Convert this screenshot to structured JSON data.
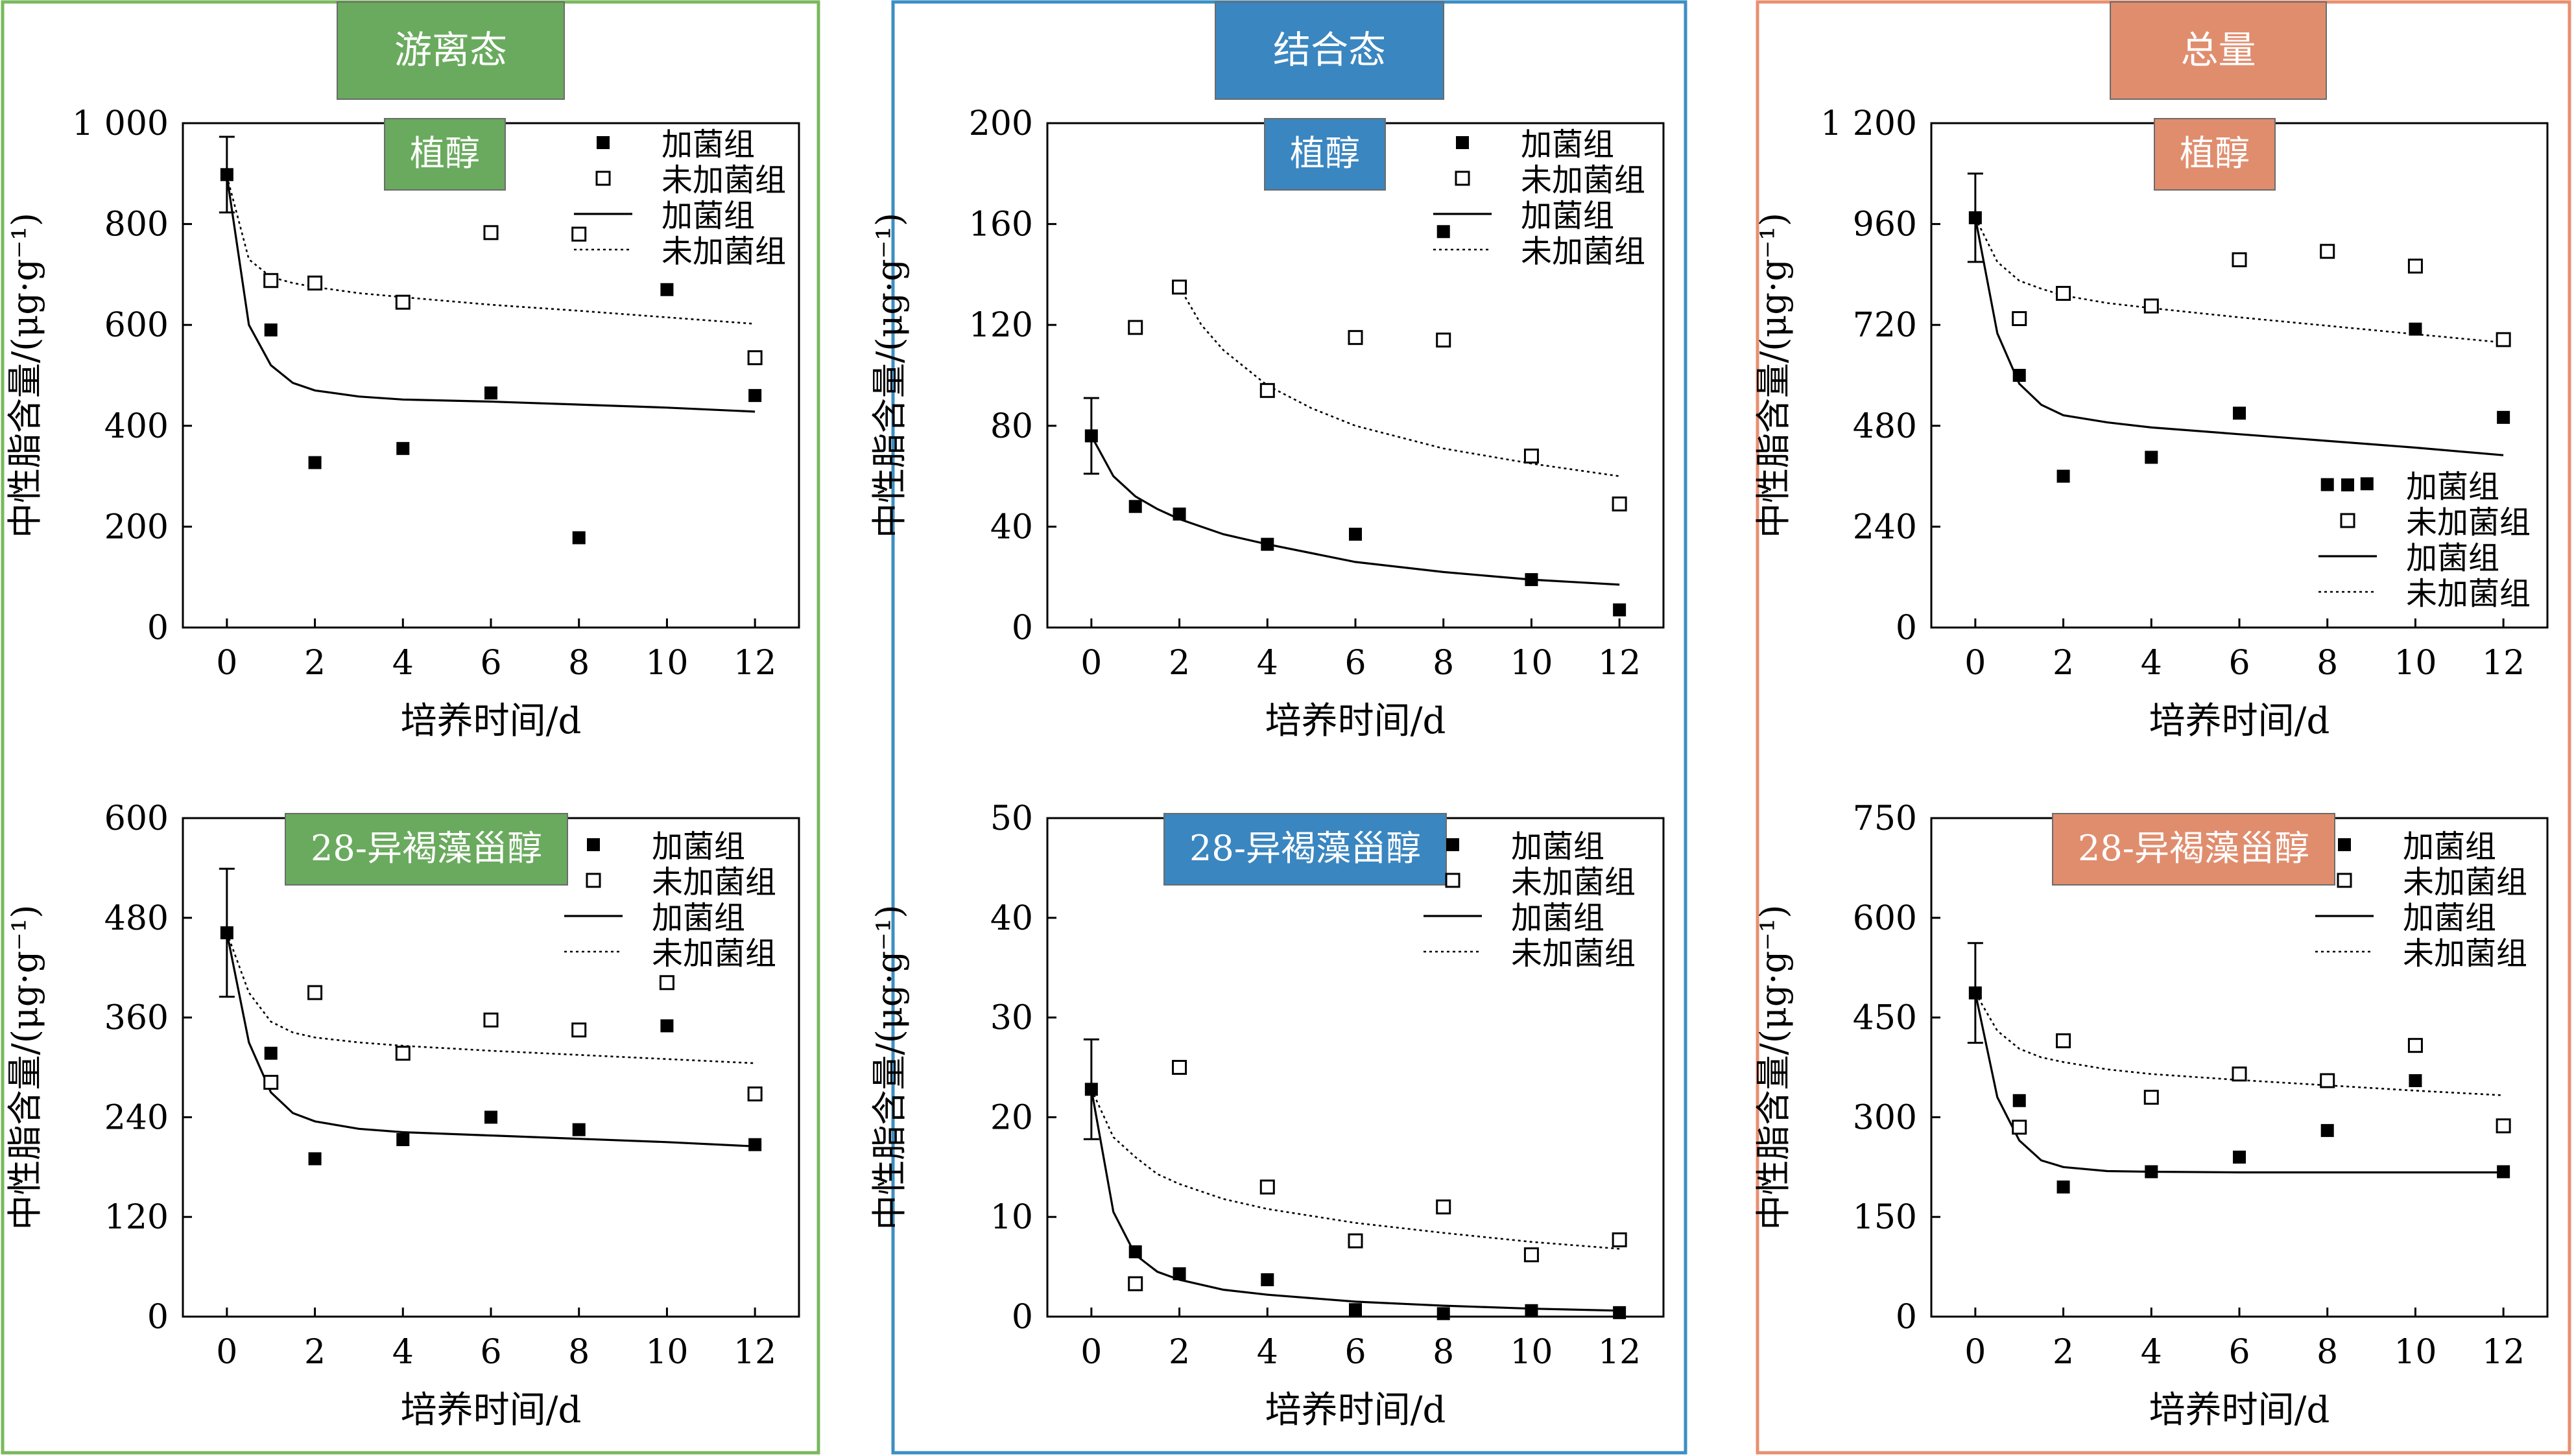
{
  "figure": {
    "columns": [
      {
        "key": "free",
        "title": "游离态",
        "frame_color": "#79b85e",
        "badge_color": "#6aaa5e"
      },
      {
        "key": "bound",
        "title": "结合态",
        "frame_color": "#3b8fc5",
        "badge_color": "#3a86c0"
      },
      {
        "key": "total",
        "title": "总量",
        "frame_color": "#e89072",
        "badge_color": "#e08d6e"
      }
    ],
    "legend": {
      "symbols": {
        "filled": "■",
        "open": "□"
      },
      "entries": [
        "加菌组",
        "未加菌组",
        "加菌组",
        "未加菌组"
      ]
    }
  },
  "chart_data": [
    {
      "panel": "free-phytol",
      "type": "scatter",
      "label": "植醇",
      "xlabel": "培养时间/d",
      "ylabel": "中性脂含量/(μg·g⁻¹)",
      "xlim": [
        -1,
        13
      ],
      "ylim": [
        0,
        1000
      ],
      "xticks": [
        0,
        2,
        4,
        6,
        8,
        10,
        12
      ],
      "xtick_labels": [
        "0",
        "2",
        "4",
        "6",
        "8",
        "10",
        "12"
      ],
      "yticks": [
        0,
        200,
        400,
        600,
        800,
        1000
      ],
      "ytick_labels": [
        "0",
        "200",
        "400",
        "600",
        "800",
        "1 000"
      ],
      "x": [
        0,
        1,
        2,
        4,
        6,
        8,
        10,
        12
      ],
      "series": [
        {
          "name": "加菌组",
          "style": "filled",
          "values": [
            null,
            590,
            327,
            355,
            465,
            178,
            670,
            460
          ]
        },
        {
          "name": "未加菌组",
          "style": "open",
          "values": [
            null,
            688,
            683,
            645,
            783,
            780,
            null,
            535
          ]
        }
      ],
      "shared_point": {
        "x": 0,
        "y": 898,
        "error": 75
      },
      "fits": [
        {
          "name": "加菌组",
          "style": "solid",
          "x": [
            0,
            0.5,
            1,
            1.5,
            2,
            3,
            4,
            6,
            8,
            10,
            12
          ],
          "y": [
            895,
            600,
            520,
            485,
            470,
            458,
            452,
            448,
            442,
            436,
            428
          ]
        },
        {
          "name": "未加菌组",
          "style": "dotted",
          "x": [
            0,
            0.5,
            1,
            1.5,
            2,
            3,
            4,
            6,
            8,
            10,
            12
          ],
          "y": [
            895,
            730,
            695,
            683,
            675,
            663,
            655,
            640,
            628,
            615,
            602
          ]
        }
      ]
    },
    {
      "panel": "free-isofucosterol",
      "type": "scatter",
      "label": "28-异褐藻甾醇",
      "xlabel": "培养时间/d",
      "ylabel": "中性脂含量/(μg·g⁻¹)",
      "xlim": [
        -1,
        13
      ],
      "ylim": [
        0,
        600
      ],
      "xticks": [
        0,
        2,
        4,
        6,
        8,
        10,
        12
      ],
      "xtick_labels": [
        "0",
        "2",
        "4",
        "6",
        "8",
        "10",
        "12"
      ],
      "yticks": [
        0,
        120,
        240,
        360,
        480,
        600
      ],
      "ytick_labels": [
        "0",
        "120",
        "240",
        "360",
        "480",
        "600"
      ],
      "x": [
        0,
        1,
        2,
        4,
        6,
        8,
        10,
        12
      ],
      "series": [
        {
          "name": "加菌组",
          "style": "filled",
          "values": [
            null,
            317,
            190,
            213,
            240,
            225,
            350,
            207
          ]
        },
        {
          "name": "未加菌组",
          "style": "open",
          "values": [
            null,
            282,
            390,
            317,
            357,
            345,
            402,
            268
          ]
        }
      ],
      "shared_point": {
        "x": 0,
        "y": 462,
        "error": 77
      },
      "fits": [
        {
          "name": "加菌组",
          "style": "solid",
          "x": [
            0,
            0.5,
            1,
            1.5,
            2,
            3,
            4,
            6,
            8,
            10,
            12
          ],
          "y": [
            462,
            330,
            270,
            245,
            235,
            226,
            222,
            218,
            214,
            210,
            205
          ]
        },
        {
          "name": "未加菌组",
          "style": "dotted",
          "x": [
            0,
            0.5,
            1,
            1.5,
            2,
            3,
            4,
            6,
            8,
            10,
            12
          ],
          "y": [
            462,
            390,
            355,
            342,
            336,
            330,
            326,
            320,
            315,
            310,
            305
          ]
        }
      ]
    },
    {
      "panel": "bound-phytol",
      "type": "scatter",
      "label": "植醇",
      "xlabel": "培养时间/d",
      "ylabel": "中性脂含量/(μg·g⁻¹)",
      "xlim": [
        -1,
        13
      ],
      "ylim": [
        0,
        200
      ],
      "xticks": [
        0,
        2,
        4,
        6,
        8,
        10,
        12
      ],
      "xtick_labels": [
        "0",
        "2",
        "4",
        "6",
        "8",
        "10",
        "12"
      ],
      "yticks": [
        0,
        40,
        80,
        120,
        160,
        200
      ],
      "ytick_labels": [
        "0",
        "40",
        "80",
        "120",
        "160",
        "200"
      ],
      "x": [
        0,
        1,
        2,
        4,
        6,
        8,
        10,
        12
      ],
      "series": [
        {
          "name": "加菌组",
          "style": "filled",
          "values": [
            null,
            48,
            45,
            33,
            37,
            157,
            19,
            7
          ]
        },
        {
          "name": "未加菌组",
          "style": "open",
          "values": [
            null,
            119,
            135,
            94,
            115,
            114,
            68,
            49
          ]
        }
      ],
      "shared_point": {
        "x": 0,
        "y": 76,
        "error": 15
      },
      "fits": [
        {
          "name": "加菌组",
          "style": "solid",
          "x": [
            0,
            0.5,
            1,
            1.5,
            2,
            3,
            4,
            6,
            8,
            10,
            12
          ],
          "y": [
            76,
            60,
            52,
            47,
            43,
            37,
            33,
            26,
            22,
            19,
            17
          ]
        },
        {
          "name": "未加菌组",
          "style": "dotted",
          "x": [
            2,
            2.5,
            3,
            4,
            5,
            6,
            8,
            10,
            12
          ],
          "y": [
            135,
            120,
            110,
            96,
            87,
            80,
            71,
            65,
            60
          ]
        }
      ]
    },
    {
      "panel": "bound-isofucosterol",
      "type": "scatter",
      "label": "28-异褐藻甾醇",
      "xlabel": "培养时间/d",
      "ylabel": "中性脂含量/(μg·g⁻¹)",
      "xlim": [
        -1,
        13
      ],
      "ylim": [
        0,
        50
      ],
      "xticks": [
        0,
        2,
        4,
        6,
        8,
        10,
        12
      ],
      "xtick_labels": [
        "0",
        "2",
        "4",
        "6",
        "8",
        "10",
        "12"
      ],
      "yticks": [
        0,
        10,
        20,
        30,
        40,
        50
      ],
      "ytick_labels": [
        "0",
        "10",
        "20",
        "30",
        "40",
        "50"
      ],
      "x": [
        0,
        1,
        2,
        4,
        6,
        8,
        10,
        12
      ],
      "series": [
        {
          "name": "加菌组",
          "style": "filled",
          "values": [
            null,
            6.5,
            4.3,
            3.7,
            0.7,
            0.3,
            0.6,
            0.4
          ]
        },
        {
          "name": "未加菌组",
          "style": "open",
          "values": [
            null,
            3.3,
            25,
            13,
            7.6,
            11,
            6.2,
            7.7
          ]
        }
      ],
      "shared_point": {
        "x": 0,
        "y": 22.8,
        "error": 5
      },
      "fits": [
        {
          "name": "加菌组",
          "style": "solid",
          "x": [
            0,
            0.5,
            1,
            1.5,
            2,
            3,
            4,
            6,
            8,
            10,
            12
          ],
          "y": [
            22.8,
            10.5,
            6.2,
            4.5,
            3.7,
            2.7,
            2.2,
            1.5,
            1.1,
            0.8,
            0.6
          ]
        },
        {
          "name": "未加菌组",
          "style": "dotted",
          "x": [
            0,
            0.5,
            1,
            1.5,
            2,
            3,
            4,
            6,
            8,
            10,
            12
          ],
          "y": [
            22.8,
            18,
            16,
            14.3,
            13.3,
            11.8,
            10.8,
            9.4,
            8.4,
            7.5,
            6.8
          ]
        }
      ]
    },
    {
      "panel": "total-phytol",
      "type": "scatter",
      "label": "植醇",
      "xlabel": "培养时间/d",
      "ylabel": "中性脂含量/(μg·g⁻¹)",
      "xlim": [
        -1,
        13
      ],
      "ylim": [
        0,
        1200
      ],
      "xticks": [
        0,
        2,
        4,
        6,
        8,
        10,
        12
      ],
      "xtick_labels": [
        "0",
        "2",
        "4",
        "6",
        "8",
        "10",
        "12"
      ],
      "yticks": [
        0,
        240,
        480,
        720,
        960,
        1200
      ],
      "ytick_labels": [
        "0",
        "240",
        "480",
        "720",
        "960",
        "1 200"
      ],
      "x": [
        0,
        1,
        2,
        4,
        6,
        8,
        10,
        12
      ],
      "series": [
        {
          "name": "加菌组",
          "style": "filled",
          "values": [
            null,
            600,
            360,
            405,
            510,
            340,
            710,
            500
          ]
        },
        {
          "name": "未加菌组",
          "style": "open",
          "values": [
            null,
            735,
            795,
            765,
            875,
            895,
            860,
            685
          ]
        }
      ],
      "shared_point": {
        "x": 0,
        "y": 975,
        "error": 105
      },
      "extra_markers": [
        {
          "x": 8.9,
          "y": 342,
          "style": "filled"
        }
      ],
      "fits": [
        {
          "name": "加菌组",
          "style": "solid",
          "x": [
            0,
            0.5,
            1,
            1.5,
            2,
            3,
            4,
            6,
            8,
            10,
            12
          ],
          "y": [
            975,
            700,
            580,
            530,
            505,
            488,
            476,
            460,
            444,
            428,
            410
          ]
        },
        {
          "name": "未加菌组",
          "style": "dotted",
          "x": [
            0,
            0.5,
            1,
            1.5,
            2,
            3,
            4,
            6,
            8,
            10,
            12
          ],
          "y": [
            975,
            870,
            825,
            806,
            790,
            772,
            760,
            738,
            718,
            698,
            678
          ]
        }
      ]
    },
    {
      "panel": "total-isofucosterol",
      "type": "scatter",
      "label": "28-异褐藻甾醇",
      "xlabel": "培养时间/d",
      "ylabel": "中性脂含量/(μg·g⁻¹)",
      "xlim": [
        -1,
        13
      ],
      "ylim": [
        0,
        750
      ],
      "xticks": [
        0,
        2,
        4,
        6,
        8,
        10,
        12
      ],
      "xtick_labels": [
        "0",
        "2",
        "4",
        "6",
        "8",
        "10",
        "12"
      ],
      "yticks": [
        0,
        150,
        300,
        450,
        600,
        750
      ],
      "ytick_labels": [
        "0",
        "150",
        "300",
        "450",
        "600",
        "750"
      ],
      "x": [
        0,
        1,
        2,
        4,
        6,
        8,
        10,
        12
      ],
      "series": [
        {
          "name": "加菌组",
          "style": "filled",
          "values": [
            null,
            325,
            195,
            218,
            240,
            280,
            355,
            218
          ]
        },
        {
          "name": "未加菌组",
          "style": "open",
          "values": [
            null,
            285,
            415,
            330,
            365,
            355,
            408,
            287
          ]
        }
      ],
      "shared_point": {
        "x": 0,
        "y": 487,
        "error": 75
      },
      "fits": [
        {
          "name": "加菌组",
          "style": "solid",
          "x": [
            0,
            0.5,
            1,
            1.5,
            2,
            3,
            4,
            6,
            8,
            10,
            12
          ],
          "y": [
            487,
            330,
            265,
            235,
            225,
            219,
            218,
            217,
            217,
            217,
            217
          ]
        },
        {
          "name": "未加菌组",
          "style": "dotted",
          "x": [
            0,
            0.5,
            1,
            1.5,
            2,
            3,
            4,
            6,
            8,
            10,
            12
          ],
          "y": [
            487,
            430,
            403,
            390,
            383,
            372,
            365,
            356,
            348,
            340,
            333
          ]
        }
      ]
    }
  ]
}
